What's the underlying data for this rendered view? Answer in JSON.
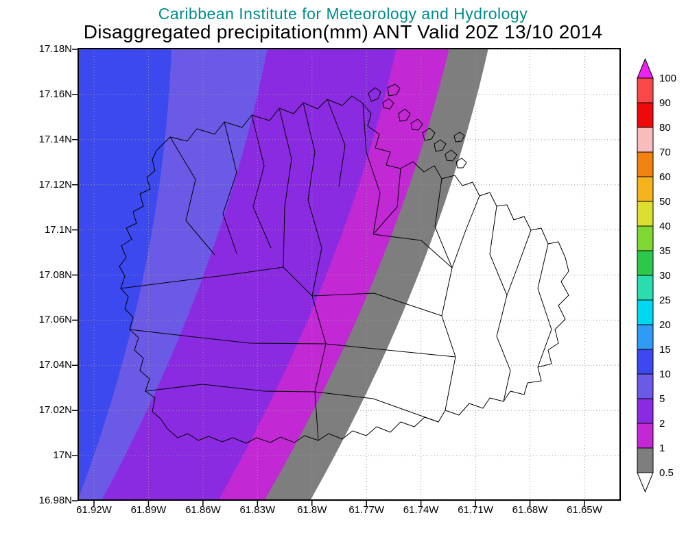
{
  "header": {
    "line1": "Caribbean Institute for Meteorology and Hydrology",
    "line2": "Disaggregated precipitation(mm) ANT Valid 20Z 13/10 2014",
    "line1_color": "#008b8b",
    "line2_color": "#000000"
  },
  "axes": {
    "lat_labels": [
      "17.18N",
      "17.16N",
      "17.14N",
      "17.12N",
      "17.1N",
      "17.08N",
      "17.06N",
      "17.04N",
      "17.02N",
      "17N",
      "16.98N"
    ],
    "lon_labels": [
      "61.92W",
      "61.89W",
      "61.86W",
      "61.83W",
      "61.8W",
      "61.77W",
      "61.74W",
      "61.71W",
      "61.68W",
      "61.65W"
    ]
  },
  "colorbar": {
    "tick_labels": [
      "100",
      "90",
      "80",
      "70",
      "60",
      "50",
      "40",
      "35",
      "30",
      "25",
      "20",
      "15",
      "10",
      "5",
      "2",
      "1",
      "0.5"
    ],
    "segment_colors_top_to_bottom": [
      "#fa4848",
      "#ee0a0a",
      "#f8bcbc",
      "#f2820f",
      "#f5b41e",
      "#dede30",
      "#7fd733",
      "#2cc84b",
      "#2adcae",
      "#00d8f0",
      "#2f9bf5",
      "#3b49ee",
      "#6a5ae6",
      "#8a2be2",
      "#c228d4",
      "#7e7e7e"
    ],
    "top_arrow_color": "#ee22ee",
    "bottom_arrow_color": "#ffffff"
  },
  "map": {
    "band_colors_left_to_right": [
      "#3b49ee",
      "#6a5ae6",
      "#8a2be2",
      "#c228d4",
      "#7e7e7e",
      "#ffffff"
    ]
  },
  "chart_data": {
    "type": "heatmap",
    "title": "Disaggregated precipitation(mm) ANT Valid 20Z 13/10 2014",
    "units": "mm",
    "lat_range": [
      "16.98N",
      "17.18N"
    ],
    "lon_range": [
      "61.92W",
      "61.65W"
    ],
    "colorbar_levels": [
      0.5,
      1,
      2,
      5,
      10,
      15,
      20,
      25,
      30,
      35,
      40,
      50,
      60,
      70,
      80,
      90,
      100
    ],
    "precip_bands_on_map_left_to_right_mm": [
      "10-15",
      "5-10",
      "2-5",
      "1-2",
      "0.5-1",
      "<0.5"
    ],
    "grid": true,
    "legend_position": "right"
  }
}
